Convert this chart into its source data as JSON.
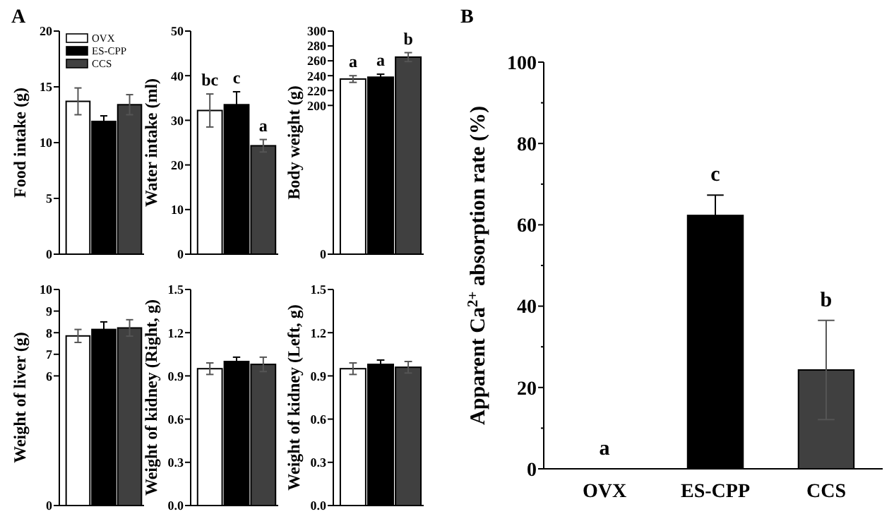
{
  "chart_data": [
    {
      "type": "bar",
      "title": "A",
      "ylabel": "Food intake (g)",
      "categories": [
        null
      ],
      "legend": "top left",
      "ylim": [
        0,
        20
      ],
      "yticks": [
        0,
        5,
        10,
        15,
        20
      ],
      "series": [
        {
          "name": "OVX",
          "color": "#ffffff",
          "values": [
            13.7
          ],
          "errors": [
            1.2
          ]
        },
        {
          "name": "ES-CPP",
          "color": "#000000",
          "values": [
            11.9
          ],
          "errors": [
            0.5
          ]
        },
        {
          "name": "CCS",
          "color": "#404040",
          "values": [
            13.4
          ],
          "errors": [
            0.9
          ]
        }
      ]
    },
    {
      "type": "bar",
      "ylabel": "Water intake (ml)",
      "categories": [
        null
      ],
      "ylim": [
        0,
        50
      ],
      "yticks": [
        0,
        10,
        20,
        30,
        40,
        50
      ],
      "series": [
        {
          "color": "#ffffff",
          "values": [
            32.2
          ],
          "errors": [
            3.7
          ]
        },
        {
          "color": "#000000",
          "values": [
            33.5
          ],
          "errors": [
            2.9
          ]
        },
        {
          "color": "#404040",
          "values": [
            24.3
          ],
          "errors": [
            1.4
          ]
        }
      ],
      "annotations": [
        "bc",
        "c",
        "a"
      ]
    },
    {
      "type": "bar",
      "ylabel": "Body weight (g)",
      "categories": [
        null
      ],
      "ylim": [
        0,
        300
      ],
      "yticks": [
        0,
        200,
        220,
        240,
        260,
        280,
        300
      ],
      "series": [
        {
          "color": "#ffffff",
          "values": [
            235.5
          ],
          "errors": [
            4.5
          ]
        },
        {
          "color": "#000000",
          "values": [
            238
          ],
          "errors": [
            4
          ]
        },
        {
          "color": "#404040",
          "values": [
            265
          ],
          "errors": [
            6
          ]
        }
      ],
      "annotations": [
        "a",
        "a",
        "b"
      ]
    },
    {
      "type": "bar",
      "ylabel": "Weight of liver (g)",
      "categories": [
        null
      ],
      "ylim": [
        0,
        10
      ],
      "yticks": [
        0,
        6,
        7,
        8,
        9,
        10
      ],
      "series": [
        {
          "color": "#ffffff",
          "values": [
            7.85
          ],
          "errors": [
            0.3
          ]
        },
        {
          "color": "#000000",
          "values": [
            8.15
          ],
          "errors": [
            0.35
          ]
        },
        {
          "color": "#404040",
          "values": [
            8.22
          ],
          "errors": [
            0.38
          ]
        }
      ]
    },
    {
      "type": "bar",
      "ylabel": "Weight of kidney (Right, g)",
      "categories": [
        null
      ],
      "ylim": [
        0,
        1.5
      ],
      "yticks": [
        {
          "value": 0,
          "label": "0.0"
        },
        0.3,
        0.6,
        0.9,
        1.2,
        1.5
      ],
      "series": [
        {
          "color": "#ffffff",
          "values": [
            0.95
          ],
          "errors": [
            0.04
          ]
        },
        {
          "color": "#000000",
          "values": [
            1.0
          ],
          "errors": [
            0.03
          ]
        },
        {
          "color": "#404040",
          "values": [
            0.98
          ],
          "errors": [
            0.05
          ]
        }
      ]
    },
    {
      "type": "bar",
      "ylabel": "Weight of kidney (Left, g)",
      "categories": [
        null
      ],
      "ylim": [
        0,
        1.5
      ],
      "yticks": [
        {
          "value": 0,
          "label": "0.0"
        },
        0.3,
        0.6,
        0.9,
        1.2,
        1.5
      ],
      "series": [
        {
          "color": "#ffffff",
          "values": [
            0.95
          ],
          "errors": [
            0.04
          ]
        },
        {
          "color": "#000000",
          "values": [
            0.98
          ],
          "errors": [
            0.03
          ]
        },
        {
          "color": "#404040",
          "values": [
            0.96
          ],
          "errors": [
            0.04
          ]
        }
      ]
    },
    {
      "type": "bar",
      "title": "B",
      "ylabel": "Apparent Ca$^{2+}$ absorption rate (%)",
      "categories": [
        "OVX",
        "ES-CPP",
        "CCS"
      ],
      "values": [
        0,
        62.3,
        24.3
      ],
      "colors": [
        "#ffffff",
        "#000000",
        "#404040"
      ],
      "errors": [
        null,
        5,
        12.2
      ],
      "ylim": [
        0,
        100
      ],
      "yticks": [
        0,
        {
          "value": 10,
          "label": null
        },
        20,
        {
          "value": 30,
          "label": null
        },
        40,
        {
          "value": 50,
          "label": null
        },
        60,
        {
          "value": 70,
          "label": null
        },
        80,
        {
          "value": 90,
          "label": null
        },
        100
      ],
      "annotations": [
        "a",
        "c",
        "b"
      ]
    }
  ]
}
